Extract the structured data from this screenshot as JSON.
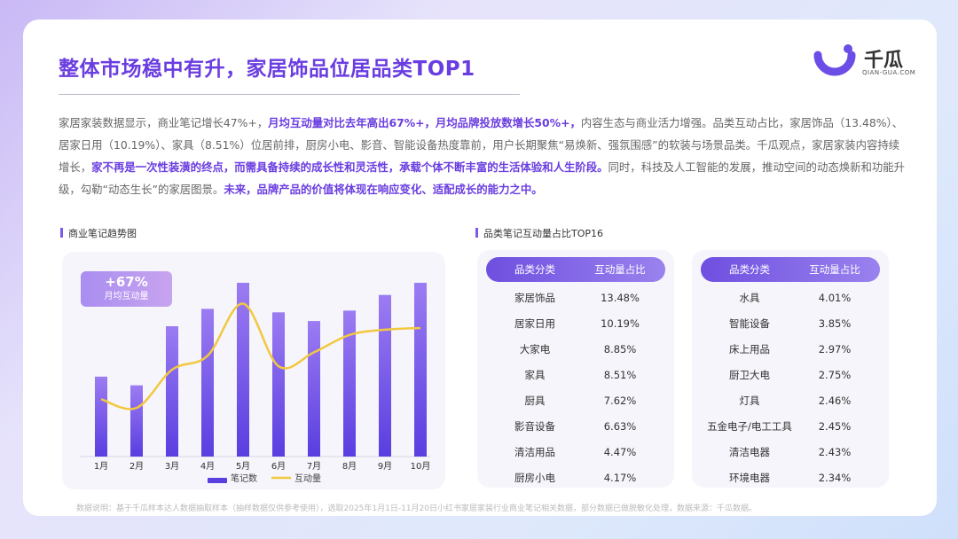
{
  "title": "整体市场稳中有升，家居饰品位居品类TOP1",
  "logo": {
    "name": "千瓜",
    "sub": "QIAN-GUA.COM"
  },
  "paragraph": [
    {
      "t": "家居家装数据显示，商业笔记增长47%+，",
      "b": false
    },
    {
      "t": "月均互动量对比去年高出67%+，月均品牌投放数增长50%+，",
      "b": true
    },
    {
      "t": "内容生态与商业活力增强。品类互动占比，家居饰品（13.48%）、居家日用（10.19%）、家具（8.51%）位居前排，厨房小电、影音、智能设备热度靠前，用户长期聚焦“易焕新、强氛围感”的软装与场景品类。千瓜观点，家居家装内容持续增长，",
      "b": false
    },
    {
      "t": "家不再是一次性装潢的终点，而需具备持续的成长性和灵活性，承载个体不断丰富的生活体验和人生阶段。",
      "b": true
    },
    {
      "t": "同时，科技及人工智能的发展，推动空间的动态焕新和功能升级，勾勒“动态生长”的家居图景。",
      "b": false
    },
    {
      "t": "未来，品牌产品的价值将体现在响应变化、适配成长的能力之中。",
      "b": true
    }
  ],
  "left_section": "商业笔记趋势图",
  "right_section": "品类笔记互动量占比TOP16",
  "badge": {
    "value": "+67%",
    "label": "月均互动量"
  },
  "colors": {
    "accent": "#6a3de0",
    "bar_top": "#9b7cf2",
    "bar_bottom": "#5a3ee0",
    "line": "#f2c840"
  },
  "chart_data": {
    "type": "bar",
    "categories": [
      "1月",
      "2月",
      "3月",
      "4月",
      "5月",
      "6月",
      "7月",
      "8月",
      "9月",
      "10月"
    ],
    "series": [
      {
        "name": "笔记数",
        "type": "bar",
        "values": [
          0.46,
          0.41,
          0.75,
          0.85,
          1.0,
          0.83,
          0.78,
          0.84,
          0.93,
          1.0
        ]
      },
      {
        "name": "互动量",
        "type": "line",
        "values": [
          0.33,
          0.28,
          0.5,
          0.58,
          0.88,
          0.52,
          0.6,
          0.7,
          0.73,
          0.74
        ]
      }
    ],
    "legend": "bottom-center",
    "grid": false
  },
  "table_header": {
    "c1": "品类分类",
    "c2": "互动量占比"
  },
  "table_left": [
    {
      "cat": "家居饰品",
      "pct": "13.48%"
    },
    {
      "cat": "居家日用",
      "pct": "10.19%"
    },
    {
      "cat": "大家电",
      "pct": "8.85%"
    },
    {
      "cat": "家具",
      "pct": "8.51%"
    },
    {
      "cat": "厨具",
      "pct": "7.62%"
    },
    {
      "cat": "影音设备",
      "pct": "6.63%"
    },
    {
      "cat": "清洁用品",
      "pct": "4.47%"
    },
    {
      "cat": "厨房小电",
      "pct": "4.17%"
    }
  ],
  "table_right": [
    {
      "cat": "水具",
      "pct": "4.01%"
    },
    {
      "cat": "智能设备",
      "pct": "3.85%"
    },
    {
      "cat": "床上用品",
      "pct": "2.97%"
    },
    {
      "cat": "厨卫大电",
      "pct": "2.75%"
    },
    {
      "cat": "灯具",
      "pct": "2.46%"
    },
    {
      "cat": "五金电子/电工工具",
      "pct": "2.45%"
    },
    {
      "cat": "清洁电器",
      "pct": "2.43%"
    },
    {
      "cat": "环境电器",
      "pct": "2.34%"
    }
  ],
  "footer": "数据说明：基于千瓜样本达人数据抽取样本（抽样数据仅供参考使用），选取2025年1月1日-11月20日小红书家居家装行业商业笔记相关数据，部分数据已做脱敏化处理，数据来源：千瓜数据。"
}
